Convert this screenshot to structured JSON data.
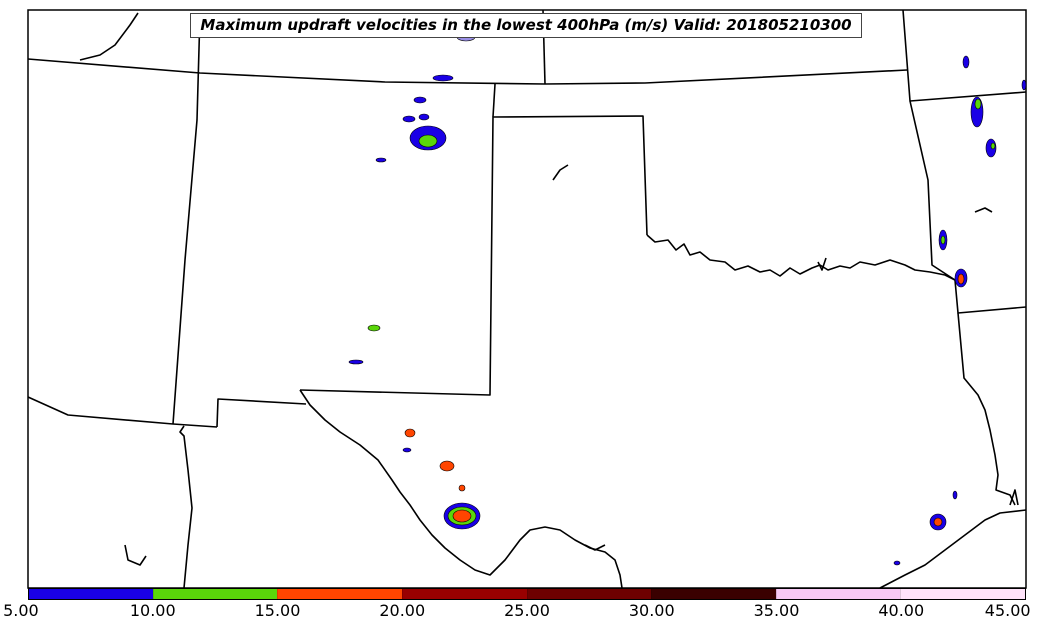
{
  "title": "Maximum updraft velocities in the lowest 400hPa (m/s) Valid: 201805210300",
  "colorbar": {
    "segments": [
      "#1a00e6",
      "#5ad60a",
      "#ff4500",
      "#990000",
      "#6e0000",
      "#3a0000",
      "#f7c8f4",
      "#ffe3fa"
    ],
    "ticks": [
      "5.00",
      "10.00",
      "15.00",
      "20.00",
      "25.00",
      "30.00",
      "35.00",
      "40.00",
      "45.00"
    ]
  },
  "colors": {
    "boundary": "#000000",
    "background": "#ffffff"
  }
}
